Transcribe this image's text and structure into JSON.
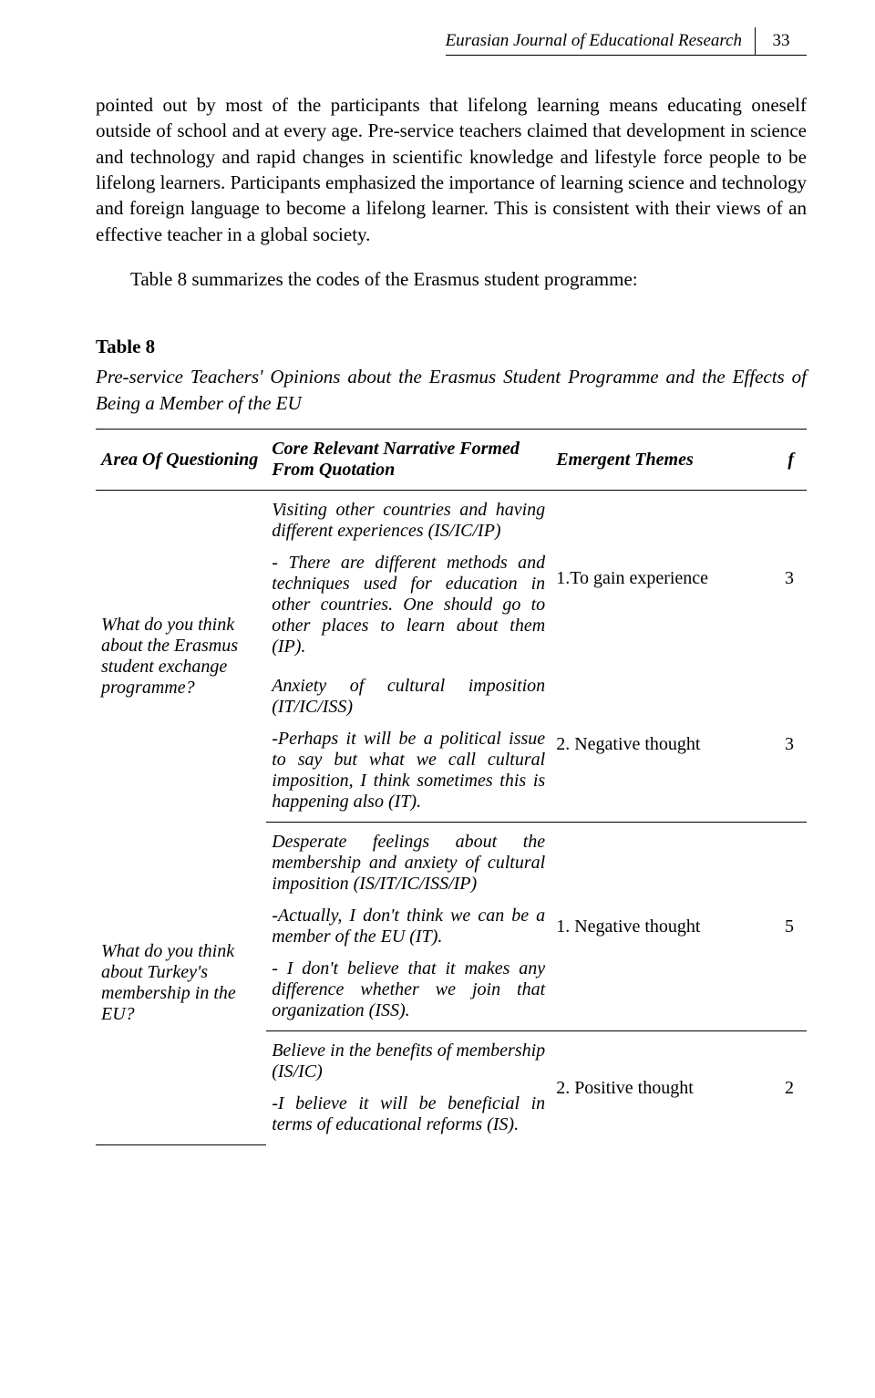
{
  "header": {
    "journal": "Eurasian Journal of Educational Research",
    "page_number": "33"
  },
  "paragraphs": {
    "p1": "pointed out by most of the participants that lifelong learning means educating oneself outside of school and at every age. Pre-service teachers claimed that development in science and technology and rapid changes in scientific knowledge and lifestyle force people to be lifelong learners. Participants emphasized the importance of learning science and technology and foreign language to become a lifelong learner. This is consistent with their views of an effective teacher in a global society.",
    "p2": "Table 8 summarizes the codes of the Erasmus student programme:"
  },
  "table": {
    "label": "Table 8",
    "caption": "Pre-service Teachers' Opinions about the Erasmus Student Programme and the Effects of Being a Member of the EU",
    "headers": {
      "area": "Area Of Questioning",
      "narrative": "Core Relevant Narrative Formed From Quotation",
      "themes": "Emergent Themes",
      "f": "f"
    },
    "rows": [
      {
        "question": "What do you think about the Erasmus student exchange programme?",
        "groups": [
          {
            "narrative_title": "Visiting other countries and having different experiences (IS/IC/IP)",
            "narrative_quote": "- There are different methods and techniques used for education in other countries. One should go to other places to learn about them (IP).",
            "theme": "1.To gain experience",
            "f": "3"
          },
          {
            "narrative_title": "Anxiety of cultural imposition (IT/IC/ISS)",
            "narrative_quote": "-Perhaps it will be a political issue to say but what we call cultural imposition, I think sometimes this is happening also (IT).",
            "theme": "2. Negative thought",
            "f": "3"
          }
        ]
      },
      {
        "question": "What do you think about Turkey's membership in the EU?",
        "groups": [
          {
            "narrative_title": "Desperate feelings about the membership and anxiety of cultural imposition (IS/IT/IC/ISS/IP)",
            "narrative_quote": " -Actually, I don't think we can be a member of the EU (IT).",
            "narrative_quote2": " - I don't believe that it makes any difference whether we join that organization (ISS).",
            "theme": "1. Negative thought",
            "f": "5"
          },
          {
            "narrative_title": "Believe in the benefits of membership (IS/IC)",
            "narrative_quote": " -I believe it will be beneficial in terms of educational reforms (IS).",
            "theme": "2. Positive thought",
            "f": "2"
          }
        ]
      }
    ]
  }
}
